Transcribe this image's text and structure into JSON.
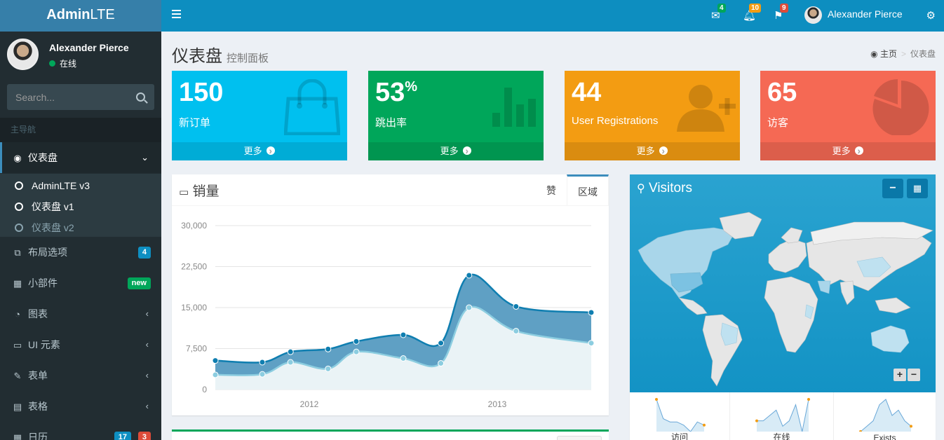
{
  "logo": {
    "bold": "Admin",
    "light": "LTE"
  },
  "user": {
    "name": "Alexander Pierce",
    "status": "在线"
  },
  "search": {
    "placeholder": "Search..."
  },
  "sidebar": {
    "header": "主导航",
    "dashboard": "仪表盘",
    "sub_items": [
      "AdminLTE v3",
      "仪表盘 v1",
      "仪表盘 v2"
    ],
    "items": [
      {
        "label": "布局选项",
        "badge": "4",
        "badge_color": "#0e8fc2"
      },
      {
        "label": "小部件",
        "badge": "new",
        "badge_color": "#00a65a"
      },
      {
        "label": "图表"
      },
      {
        "label": "UI 元素"
      },
      {
        "label": "表单"
      },
      {
        "label": "表格"
      },
      {
        "label": "日历",
        "badge": "17",
        "badge2": "3"
      }
    ]
  },
  "navbar": {
    "messages_count": "4",
    "notifications_count": "10",
    "tasks_count": "9",
    "user_name": "Alexander Pierce"
  },
  "content": {
    "title": "仪表盘",
    "subtitle": "控制面板",
    "breadcrumb_home": "主页",
    "breadcrumb_current": "仪表盘"
  },
  "boxes": [
    {
      "value": "150",
      "label": "新订单",
      "more": "更多",
      "color": "#00c0ef",
      "icon": "shopping-bag-icon"
    },
    {
      "value": "53",
      "sup": "%",
      "label": "跳出率",
      "more": "更多",
      "color": "#00a65a",
      "icon": "bar-chart-icon"
    },
    {
      "value": "44",
      "label": "User Registrations",
      "more": "更多",
      "color": "#f39c12",
      "icon": "person-add-icon"
    },
    {
      "value": "65",
      "label": "访客",
      "more": "更多",
      "color": "#f56954",
      "icon": "pie-chart-icon"
    }
  ],
  "sales": {
    "title": "销量",
    "tabs": [
      "赞",
      "区域"
    ]
  },
  "chart_data": {
    "type": "area",
    "x": [
      2011.5,
      2011.75,
      2011.9,
      2012.1,
      2012.25,
      2012.5,
      2012.7,
      2012.85,
      2013.1,
      2013.5
    ],
    "xticks": [
      "2012",
      "2013"
    ],
    "yticks": [
      "30,000",
      "22,500",
      "15,000",
      "7,500",
      "0"
    ],
    "ylim": [
      0,
      30000
    ],
    "series": [
      {
        "values": [
          5300,
          5000,
          6900,
          7400,
          8800,
          10000,
          8500,
          20900,
          15200,
          14100
        ],
        "color": "#3c8dbc"
      },
      {
        "values": [
          2700,
          2800,
          5000,
          3800,
          6900,
          5700,
          4800,
          15000,
          10700,
          8500
        ],
        "color": "#a0d0e0"
      }
    ]
  },
  "visitors": {
    "title": "Visitors",
    "sparks": [
      {
        "label": "访问",
        "values": [
          10,
          4,
          3,
          3,
          2,
          0,
          3,
          2
        ]
      },
      {
        "label": "在线",
        "values": [
          2,
          2,
          3,
          4,
          1,
          2,
          5,
          0,
          6
        ]
      },
      {
        "label": "Exists",
        "values": [
          0,
          1,
          2,
          5,
          6,
          3,
          4,
          2,
          1
        ]
      }
    ]
  }
}
